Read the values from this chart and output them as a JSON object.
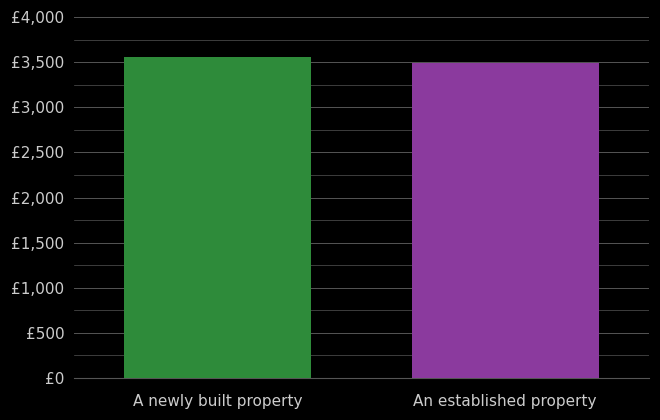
{
  "categories": [
    "A newly built property",
    "An established property"
  ],
  "values": [
    3556,
    3493
  ],
  "bar_colors": [
    "#2e8b3a",
    "#8b3a9e"
  ],
  "background_color": "#000000",
  "text_color": "#cccccc",
  "grid_color": "#555555",
  "ylim": [
    0,
    4000
  ],
  "yticks": [
    0,
    500,
    1000,
    1500,
    2000,
    2500,
    3000,
    3500,
    4000
  ],
  "ytick_labels": [
    "£0",
    "£500",
    "£1,000",
    "£1,500",
    "£2,000",
    "£2,500",
    "£3,000",
    "£3,500",
    "£4,000"
  ],
  "bar_width": 0.65,
  "xlabel_fontsize": 11,
  "ytick_fontsize": 11
}
